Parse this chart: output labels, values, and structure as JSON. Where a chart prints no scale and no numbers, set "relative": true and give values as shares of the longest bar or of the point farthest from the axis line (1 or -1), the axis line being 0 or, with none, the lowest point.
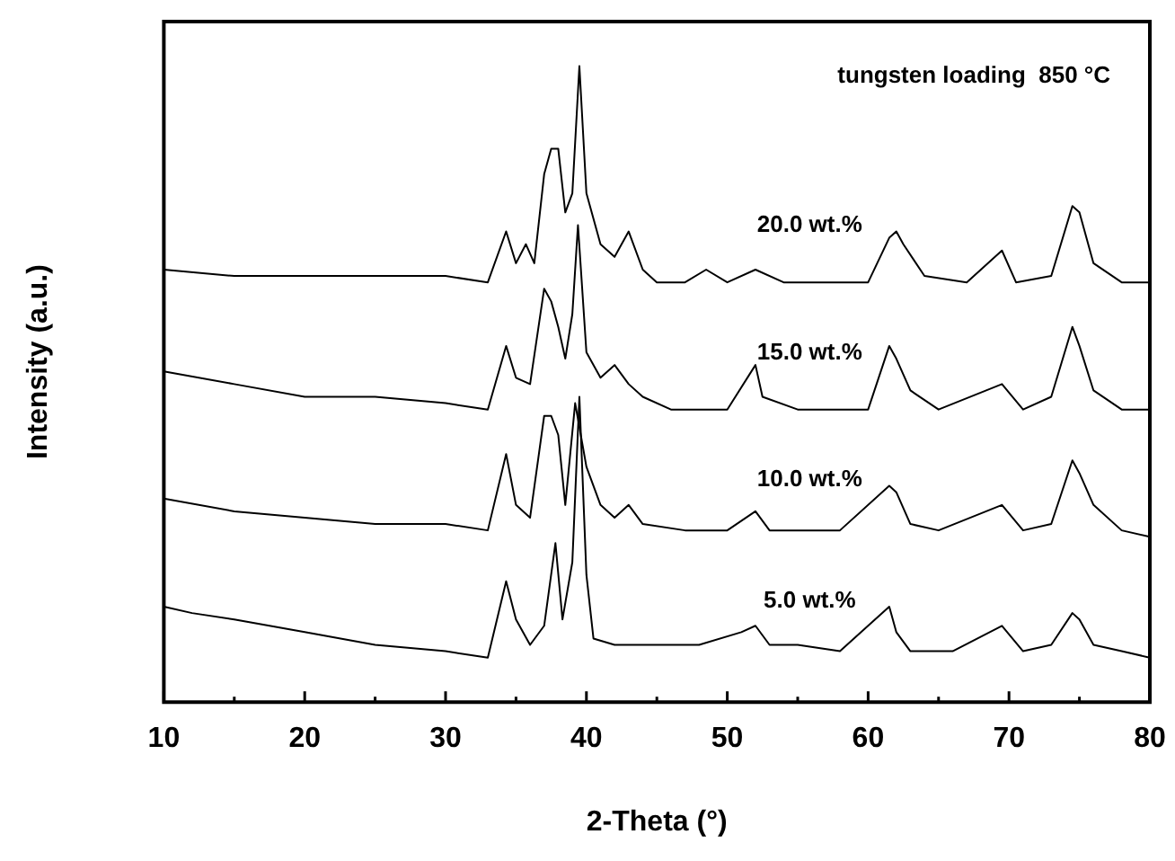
{
  "chart_data": {
    "type": "line",
    "relative": true,
    "xlabel": "2-Theta (°)",
    "ylabel": "Intensity (a.u.)",
    "xlim": [
      10,
      80
    ],
    "xticks": [
      10,
      {
        "value": 15,
        "label": null
      },
      20,
      {
        "value": 25,
        "label": null
      },
      30,
      {
        "value": 35,
        "label": null
      },
      40,
      {
        "value": 45,
        "label": null
      },
      50,
      {
        "value": 55,
        "label": null
      },
      60,
      {
        "value": 65,
        "label": null
      },
      70,
      {
        "value": 75,
        "label": null
      },
      80
    ],
    "annotations": [
      "tungsten loading  850 °C"
    ],
    "series": [
      {
        "name": "20.0 wt.%",
        "color": "#000000",
        "x": [
          10,
          15,
          20,
          25,
          30,
          33,
          34.3,
          35,
          35.7,
          36.3,
          37,
          37.5,
          38,
          38.5,
          39,
          39.5,
          40,
          41,
          42,
          43,
          44,
          45,
          47,
          48.5,
          50,
          52,
          54,
          57,
          60,
          61.5,
          62,
          62.5,
          64,
          67,
          69.5,
          70.5,
          73,
          74.5,
          75,
          76,
          78,
          80
        ],
        "values": [
          0.68,
          0.67,
          0.67,
          0.67,
          0.67,
          0.66,
          0.74,
          0.69,
          0.72,
          0.69,
          0.83,
          0.87,
          0.87,
          0.77,
          0.8,
          1,
          0.8,
          0.72,
          0.7,
          0.74,
          0.68,
          0.66,
          0.66,
          0.68,
          0.66,
          0.68,
          0.66,
          0.66,
          0.66,
          0.73,
          0.74,
          0.72,
          0.67,
          0.66,
          0.71,
          0.66,
          0.67,
          0.78,
          0.77,
          0.69,
          0.66,
          0.66
        ]
      },
      {
        "name": "15.0 wt.%",
        "color": "#000000",
        "x": [
          10,
          15,
          20,
          25,
          30,
          33,
          34.3,
          35,
          36,
          37,
          37.5,
          38,
          38.5,
          39,
          39.4,
          40,
          41,
          42,
          43,
          44,
          46,
          50,
          52,
          52.5,
          55,
          60,
          61.5,
          62,
          63,
          65,
          69.5,
          71,
          73,
          74.5,
          75,
          76,
          78,
          80
        ],
        "values": [
          0.52,
          0.5,
          0.48,
          0.48,
          0.47,
          0.46,
          0.56,
          0.51,
          0.5,
          0.65,
          0.63,
          0.59,
          0.54,
          0.61,
          0.75,
          0.55,
          0.51,
          0.53,
          0.5,
          0.48,
          0.46,
          0.46,
          0.53,
          0.48,
          0.46,
          0.46,
          0.56,
          0.54,
          0.49,
          0.46,
          0.5,
          0.46,
          0.48,
          0.59,
          0.56,
          0.49,
          0.46,
          0.46
        ]
      },
      {
        "name": "10.0 wt.%",
        "color": "#000000",
        "x": [
          10,
          15,
          20,
          25,
          30,
          33,
          34.3,
          35,
          36,
          37,
          37.5,
          38,
          38.5,
          39.2,
          40,
          41,
          42,
          43,
          44,
          47,
          50,
          52,
          53,
          58,
          61.5,
          62,
          63,
          65,
          69.5,
          71,
          73,
          74.5,
          75,
          76,
          78,
          80
        ],
        "values": [
          0.32,
          0.3,
          0.29,
          0.28,
          0.28,
          0.27,
          0.39,
          0.31,
          0.29,
          0.45,
          0.45,
          0.42,
          0.31,
          0.47,
          0.37,
          0.31,
          0.29,
          0.31,
          0.28,
          0.27,
          0.27,
          0.3,
          0.27,
          0.27,
          0.34,
          0.33,
          0.28,
          0.27,
          0.31,
          0.27,
          0.28,
          0.38,
          0.36,
          0.31,
          0.27,
          0.26
        ]
      },
      {
        "name": "5.0 wt.%",
        "color": "#000000",
        "x": [
          10,
          12,
          15,
          20,
          25,
          30,
          33,
          34.3,
          35,
          36,
          37,
          37.8,
          38.3,
          39,
          39.5,
          40,
          40.5,
          42,
          45,
          48,
          51,
          52,
          53,
          55,
          58,
          61.5,
          62,
          63,
          66,
          69.5,
          71,
          73,
          74.5,
          75,
          76,
          78,
          80
        ],
        "values": [
          0.15,
          0.14,
          0.13,
          0.11,
          0.09,
          0.08,
          0.07,
          0.19,
          0.13,
          0.09,
          0.12,
          0.25,
          0.13,
          0.22,
          0.48,
          0.2,
          0.1,
          0.09,
          0.09,
          0.09,
          0.11,
          0.12,
          0.09,
          0.09,
          0.08,
          0.15,
          0.11,
          0.08,
          0.08,
          0.12,
          0.08,
          0.09,
          0.14,
          0.13,
          0.09,
          0.08,
          0.07
        ]
      }
    ]
  }
}
